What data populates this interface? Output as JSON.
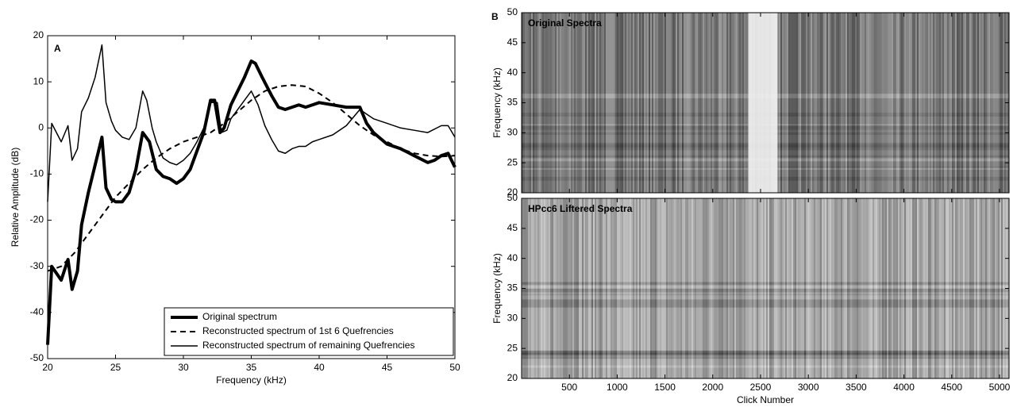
{
  "chart_data": [
    {
      "type": "line",
      "annotation": "A",
      "xlabel": "Frequency (kHz)",
      "ylabel": "Relative Amplitude (dB)",
      "xlim": [
        20,
        50
      ],
      "xticks": [
        20,
        25,
        30,
        35,
        40,
        45,
        50
      ],
      "ylim": [
        -50,
        20
      ],
      "yticks": [
        -50,
        -40,
        -30,
        -20,
        -10,
        0,
        10,
        20
      ],
      "series": [
        {
          "name": "Original spectrum",
          "color": "#000000",
          "dash": false,
          "x": [
            20,
            20.3,
            21,
            21.5,
            21.8,
            22.2,
            22.5,
            23,
            23.5,
            24,
            24.3,
            24.7,
            25,
            25.5,
            26,
            26.5,
            27,
            27.5,
            28,
            28.5,
            29,
            29.5,
            30,
            30.5,
            31,
            31.5,
            32,
            32.3,
            32.7,
            33,
            33.5,
            34,
            34.5,
            35,
            35.3,
            35.8,
            36.5,
            37,
            37.5,
            38,
            38.5,
            39,
            39.5,
            40,
            41,
            42,
            42.5,
            43,
            43.5,
            44,
            45,
            46,
            47,
            48,
            48.5,
            49,
            49.5,
            50
          ],
          "values": [
            -47,
            -30,
            -33,
            -28.5,
            -35,
            -31,
            -21,
            -14,
            -8,
            -2,
            -13,
            -15.5,
            -16,
            -16,
            -14,
            -9,
            -1,
            -3,
            -9,
            -10.5,
            -11,
            -12,
            -11,
            -9,
            -5,
            -1,
            6,
            6,
            -1,
            0,
            5,
            8,
            11,
            14.5,
            14,
            11,
            7,
            4.5,
            4,
            4.5,
            5,
            4.5,
            5,
            5.5,
            5,
            4.5,
            4.5,
            4.5,
            1,
            -1,
            -3.5,
            -4.5,
            -6,
            -7.5,
            -7,
            -6,
            -5.5,
            -8.5
          ]
        },
        {
          "name": "Reconstructed spectrum of 1st 6 Quefrencies",
          "color": "#000000",
          "dash": true,
          "x": [
            20,
            21,
            22,
            23,
            24,
            25,
            26,
            27,
            28,
            29,
            30,
            31,
            32,
            33,
            34,
            35,
            36,
            37,
            38,
            39,
            40,
            41,
            42,
            43,
            44,
            45,
            46,
            47,
            48,
            49,
            50
          ],
          "values": [
            -31,
            -30,
            -27,
            -23,
            -19,
            -15,
            -12,
            -9,
            -6.5,
            -4.5,
            -3,
            -2,
            -1,
            1,
            3.5,
            6,
            8,
            9,
            9.3,
            9,
            7.5,
            5.5,
            3,
            0.5,
            -1.5,
            -3,
            -4.5,
            -5.5,
            -6,
            -6.2,
            -6
          ]
        },
        {
          "name": "Reconstructed spectrum of remaining Quefrencies",
          "color": "#000000",
          "dash": false,
          "x": [
            20,
            20.3,
            21,
            21.5,
            21.8,
            22.2,
            22.5,
            23,
            23.5,
            24,
            24.3,
            24.7,
            25,
            25.5,
            26,
            26.5,
            27,
            27.3,
            27.7,
            28,
            28.5,
            29,
            29.5,
            30,
            30.5,
            31,
            31.5,
            32,
            32.5,
            32.8,
            33.2,
            33.5,
            34,
            35,
            35.5,
            36,
            36.5,
            37,
            37.5,
            38,
            38.5,
            39,
            39.5,
            40,
            41,
            42,
            43,
            43.5,
            44,
            45,
            46,
            47,
            48,
            49,
            49.5,
            50
          ],
          "values": [
            -16,
            1,
            -3,
            0.5,
            -7,
            -4.5,
            3.5,
            6.5,
            11,
            18,
            5.5,
            1.5,
            -0.5,
            -2,
            -2.5,
            0,
            8,
            6,
            0,
            -3,
            -6.5,
            -7.5,
            -8,
            -7,
            -5.5,
            -3,
            0,
            5.5,
            5.5,
            -1,
            -0.5,
            2,
            4,
            8,
            5,
            0.5,
            -2.5,
            -5,
            -5.5,
            -4.5,
            -4,
            -4,
            -3,
            -2.5,
            -1.5,
            0.5,
            4,
            3,
            2,
            1,
            0,
            -0.5,
            -1,
            0.5,
            0.5,
            -2
          ]
        }
      ]
    },
    {
      "type": "image",
      "annotation": "B",
      "title": "Original Spectra",
      "ylabel": "Frequency (kHz)",
      "xlim": [
        0,
        5100
      ],
      "xticks": [
        500,
        1000,
        1500,
        2000,
        2500,
        3000,
        3500,
        4000,
        4500,
        5000
      ],
      "ylim": [
        20,
        50
      ],
      "yticks": [
        20,
        25,
        30,
        35,
        40,
        45,
        50
      ]
    },
    {
      "type": "image",
      "title": "HPcc6 Liftered Spectra",
      "ylabel": "Frequency (kHz)",
      "xlabel": "Click Number",
      "xlim": [
        0,
        5100
      ],
      "xticks": [
        500,
        1000,
        1500,
        2000,
        2500,
        3000,
        3500,
        4000,
        4500,
        5000
      ],
      "ylim": [
        20,
        50
      ],
      "yticks": [
        20,
        25,
        30,
        35,
        40,
        45,
        50
      ]
    }
  ]
}
